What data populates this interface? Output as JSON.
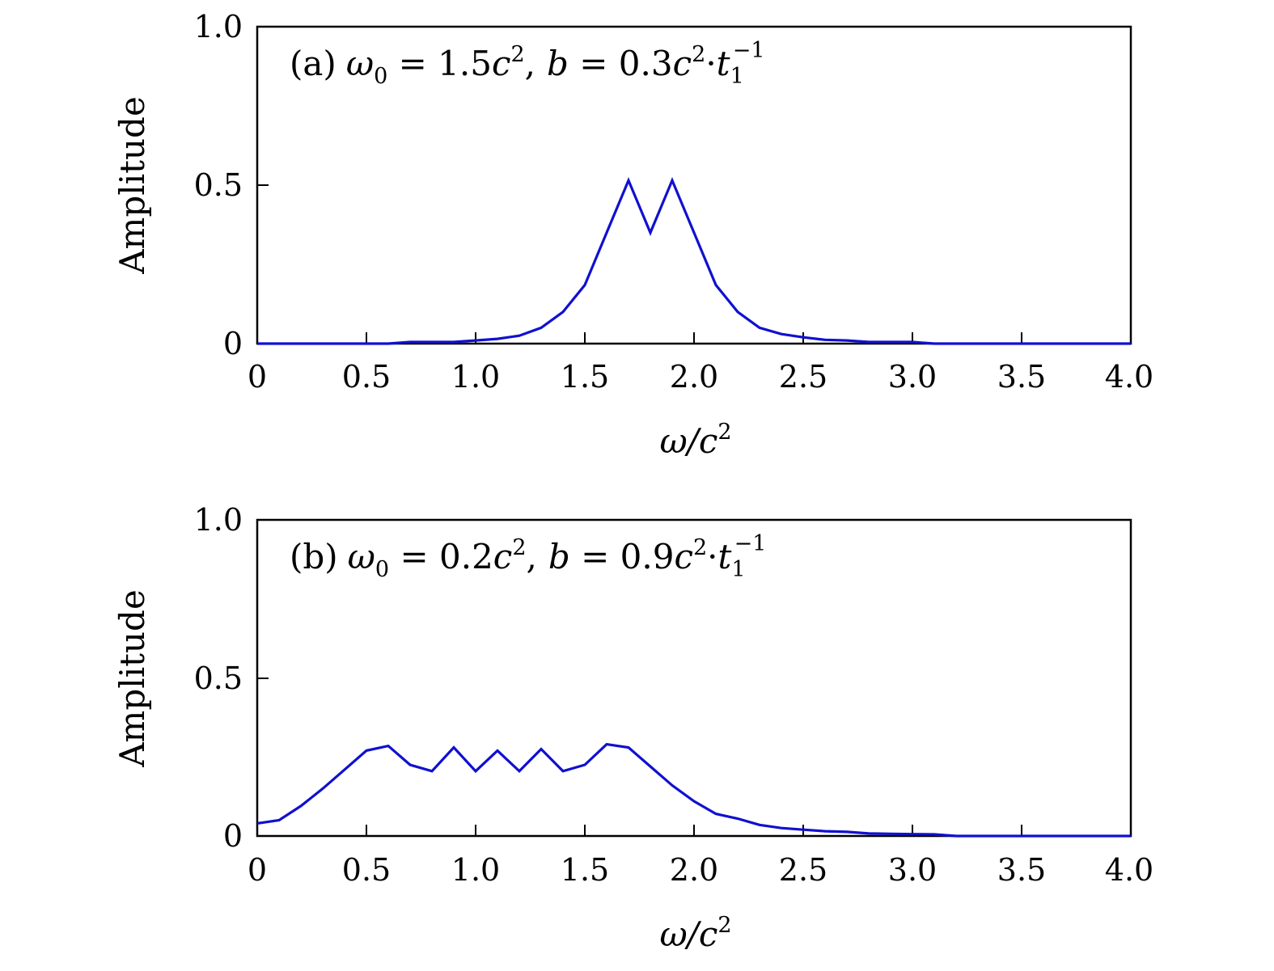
{
  "chart_data": [
    {
      "type": "line",
      "annotation": "(a) ω₀ = 1.5c², b = 0.3c²·t₁⁻¹",
      "annotation_parts": {
        "label": "(a)",
        "omega": "ω",
        "omega_sub": "0",
        "eq1": " = 1.5",
        "c1": "c",
        "c1_sup": "2",
        "comma": ",",
        "b": "b",
        "eq2": " = 0.3",
        "c2": "c",
        "c2_sup": "2",
        "dot": "·",
        "t": "t",
        "t_sub": "1",
        "t_sup": "−1"
      },
      "xlabel": "ω/c²",
      "xlabel_parts": {
        "main": "ω/c",
        "sup": "2"
      },
      "ylabel": "Amplitude",
      "xlim": [
        0,
        4.0
      ],
      "ylim": [
        0,
        1.0
      ],
      "xticks": [
        0,
        0.5,
        1.0,
        1.5,
        2.0,
        2.5,
        3.0,
        3.5,
        4.0
      ],
      "xtick_labels": [
        "0",
        "0.5",
        "1.0",
        "1.5",
        "2.0",
        "2.5",
        "3.0",
        "3.5",
        "4.0"
      ],
      "yticks": [
        0,
        0.5,
        1.0
      ],
      "ytick_labels": [
        "0",
        "0.5",
        "1.0"
      ],
      "grid": false,
      "color": "#1010d0",
      "series": [
        {
          "x": [
            0,
            0.1,
            0.2,
            0.3,
            0.4,
            0.5,
            0.6,
            0.7,
            0.8,
            0.9,
            1.0,
            1.1,
            1.2,
            1.3,
            1.4,
            1.5,
            1.6,
            1.7,
            1.8,
            1.9,
            2.0,
            2.1,
            2.2,
            2.3,
            2.4,
            2.5,
            2.6,
            2.7,
            2.8,
            2.9,
            3.0,
            3.1,
            3.2,
            3.3,
            3.4,
            3.5,
            3.6,
            3.7,
            3.8,
            3.9,
            4.0
          ],
          "y": [
            0.0,
            0.0,
            0.0,
            0.0,
            0.0,
            0.0,
            0.0,
            0.005,
            0.005,
            0.005,
            0.01,
            0.015,
            0.025,
            0.05,
            0.1,
            0.185,
            0.35,
            0.515,
            0.35,
            0.515,
            0.35,
            0.185,
            0.1,
            0.05,
            0.03,
            0.02,
            0.012,
            0.01,
            0.005,
            0.005,
            0.005,
            0.0,
            0.0,
            0.0,
            0.0,
            0.0,
            0.0,
            0.0,
            0.0,
            0.0,
            0.0
          ]
        }
      ]
    },
    {
      "type": "line",
      "annotation": "(b) ω₀ = 0.2c², b = 0.9c²·t₁⁻¹",
      "annotation_parts": {
        "label": "(b)",
        "omega": "ω",
        "omega_sub": "0",
        "eq1": " = 0.2",
        "c1": "c",
        "c1_sup": "2",
        "comma": ",",
        "b": "b",
        "eq2": " = 0.9",
        "c2": "c",
        "c2_sup": "2",
        "dot": "·",
        "t": "t",
        "t_sub": "1",
        "t_sup": "−1"
      },
      "xlabel": "ω/c²",
      "xlabel_parts": {
        "main": "ω/c",
        "sup": "2"
      },
      "ylabel": "Amplitude",
      "xlim": [
        0,
        4.0
      ],
      "ylim": [
        0,
        1.0
      ],
      "xticks": [
        0,
        0.5,
        1.0,
        1.5,
        2.0,
        2.5,
        3.0,
        3.5,
        4.0
      ],
      "xtick_labels": [
        "0",
        "0.5",
        "1.0",
        "1.5",
        "2.0",
        "2.5",
        "3.0",
        "3.5",
        "4.0"
      ],
      "yticks": [
        0,
        0.5,
        1.0
      ],
      "ytick_labels": [
        "0",
        "0.5",
        "1.0"
      ],
      "grid": false,
      "color": "#1010d0",
      "series": [
        {
          "x": [
            0,
            0.1,
            0.2,
            0.3,
            0.4,
            0.5,
            0.6,
            0.7,
            0.8,
            0.9,
            1.0,
            1.1,
            1.2,
            1.3,
            1.4,
            1.5,
            1.6,
            1.7,
            1.8,
            1.9,
            2.0,
            2.1,
            2.2,
            2.3,
            2.4,
            2.5,
            2.6,
            2.7,
            2.8,
            2.9,
            3.0,
            3.1,
            3.2,
            3.3,
            3.4,
            3.5,
            3.6,
            3.7,
            3.8,
            3.9,
            4.0
          ],
          "y": [
            0.04,
            0.05,
            0.095,
            0.15,
            0.21,
            0.27,
            0.285,
            0.225,
            0.205,
            0.28,
            0.205,
            0.27,
            0.205,
            0.275,
            0.205,
            0.225,
            0.29,
            0.28,
            0.22,
            0.16,
            0.11,
            0.07,
            0.055,
            0.035,
            0.025,
            0.02,
            0.015,
            0.013,
            0.008,
            0.007,
            0.006,
            0.005,
            0.0,
            0.0,
            0.0,
            0.0,
            0.0,
            0.0,
            0.0,
            0.0,
            0.0
          ]
        }
      ]
    }
  ]
}
